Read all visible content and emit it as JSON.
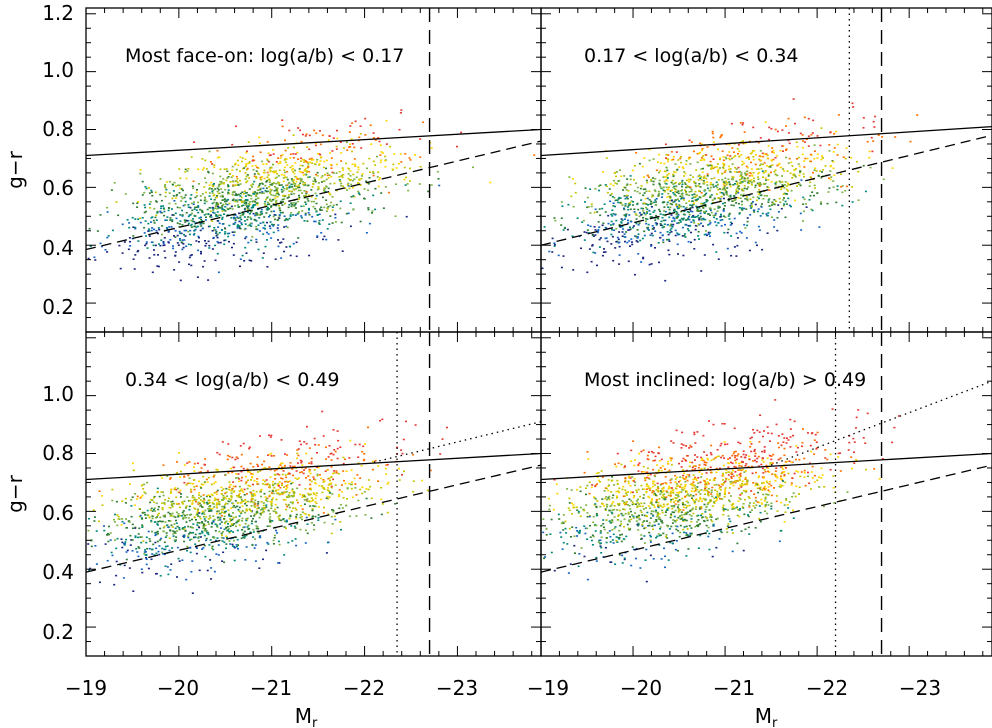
{
  "chart_data": [
    {
      "type": "scatter",
      "title": "Most face-on: log(a/b) < 0.17",
      "xlabel": "M_r",
      "ylabel": "g−r",
      "xlim": [
        -19,
        -23.9
      ],
      "ylim": [
        0.1,
        1.22
      ],
      "x_ticks": [
        "−19",
        "−20",
        "−21",
        "−22",
        "−23"
      ],
      "y_ticks": [
        "0.2",
        "0.4",
        "0.6",
        "0.8",
        "1.0",
        "1.2"
      ],
      "lines": {
        "solid": [
          [
            -19,
            0.71
          ],
          [
            -23.9,
            0.8
          ]
        ],
        "dashed": [
          [
            -19,
            0.385
          ],
          [
            -23.9,
            0.76
          ]
        ],
        "vertical_dashed": -22.7,
        "dotted": null,
        "vertical_dotted": null
      },
      "cloud": {
        "center": [
          -20.8,
          0.56
        ],
        "n_points": 1600
      }
    },
    {
      "type": "scatter",
      "title": "0.17 < log(a/b) < 0.34",
      "xlabel": "M_r",
      "ylabel": "",
      "xlim": [
        -19,
        -23.9
      ],
      "ylim": [
        0.1,
        1.22
      ],
      "x_ticks": [
        "−19",
        "−20",
        "−21",
        "−22",
        "−23"
      ],
      "lines": {
        "solid": [
          [
            -19,
            0.71
          ],
          [
            -23.9,
            0.81
          ]
        ],
        "dashed": [
          [
            -19,
            0.4
          ],
          [
            -23.9,
            0.78
          ]
        ],
        "vertical_dashed": -22.7,
        "dotted": null,
        "vertical_dotted": -22.35
      },
      "cloud": {
        "center": [
          -20.8,
          0.58
        ],
        "n_points": 1600
      }
    },
    {
      "type": "scatter",
      "title": "0.34 < log(a/b) < 0.49",
      "xlabel": "M_r",
      "ylabel": "g−r",
      "xlim": [
        -19,
        -23.9
      ],
      "ylim": [
        0.1,
        1.22
      ],
      "x_ticks": [
        "−19",
        "−20",
        "−21",
        "−22",
        "−23"
      ],
      "y_ticks": [
        "0.2",
        "0.4",
        "0.6",
        "0.8",
        "1.0"
      ],
      "lines": {
        "solid": [
          [
            -19,
            0.71
          ],
          [
            -23.9,
            0.8
          ]
        ],
        "dashed": [
          [
            -19,
            0.39
          ],
          [
            -23.9,
            0.76
          ]
        ],
        "vertical_dashed": -22.7,
        "dotted": [
          [
            -22.1,
            0.77
          ],
          [
            -23.9,
            0.91
          ]
        ],
        "vertical_dotted": -22.35
      },
      "cloud": {
        "center": [
          -20.6,
          0.62
        ],
        "n_points": 1600
      }
    },
    {
      "type": "scatter",
      "title": "Most inclined: log(a/b) > 0.49",
      "xlabel": "M_r",
      "ylabel": "",
      "xlim": [
        -19,
        -23.9
      ],
      "ylim": [
        0.1,
        1.22
      ],
      "x_ticks": [
        "−19",
        "−20",
        "−21",
        "−22",
        "−23"
      ],
      "lines": {
        "solid": [
          [
            -19,
            0.71
          ],
          [
            -23.9,
            0.8
          ]
        ],
        "dashed": [
          [
            -19,
            0.39
          ],
          [
            -23.9,
            0.76
          ]
        ],
        "vertical_dashed": -22.7,
        "dotted": [
          [
            -21.5,
            0.76
          ],
          [
            -23.9,
            1.05
          ]
        ],
        "vertical_dotted": -22.2
      },
      "cloud": {
        "center": [
          -20.6,
          0.66
        ],
        "n_points": 1600
      }
    }
  ],
  "point_colors": [
    "#1a237e",
    "#1565c0",
    "#00897b",
    "#2e7d32",
    "#7cb342",
    "#c6c600",
    "#ffd600",
    "#ff6f00",
    "#e53935"
  ]
}
